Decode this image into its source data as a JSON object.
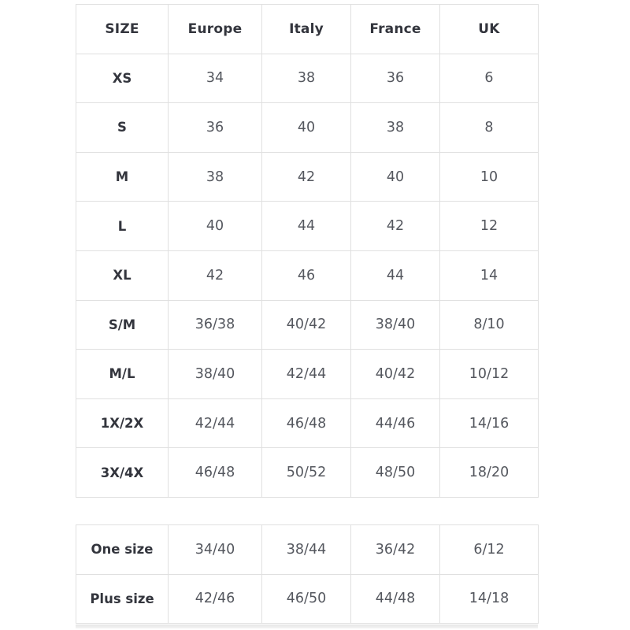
{
  "main_table": {
    "headers": [
      "SIZE",
      "Europe",
      "Italy",
      "France",
      "UK"
    ],
    "rows": [
      {
        "label": "XS",
        "europe": "34",
        "italy": "38",
        "france": "36",
        "uk": "6"
      },
      {
        "label": "S",
        "europe": "36",
        "italy": "40",
        "france": "38",
        "uk": "8"
      },
      {
        "label": "M",
        "europe": "38",
        "italy": "42",
        "france": "40",
        "uk": "10"
      },
      {
        "label": "L",
        "europe": "40",
        "italy": "44",
        "france": "42",
        "uk": "12"
      },
      {
        "label": "XL",
        "europe": "42",
        "italy": "46",
        "france": "44",
        "uk": "14"
      },
      {
        "label": "S/M",
        "europe": "36/38",
        "italy": "40/42",
        "france": "38/40",
        "uk": "8/10"
      },
      {
        "label": "M/L",
        "europe": "38/40",
        "italy": "42/44",
        "france": "40/42",
        "uk": "10/12"
      },
      {
        "label": "1X/2X",
        "europe": "42/44",
        "italy": "46/48",
        "france": "44/46",
        "uk": "14/16"
      },
      {
        "label": "3X/4X",
        "europe": "46/48",
        "italy": "50/52",
        "france": "48/50",
        "uk": "18/20"
      }
    ]
  },
  "extra_table": {
    "rows": [
      {
        "label": "One size",
        "europe": "34/40",
        "italy": "38/44",
        "france": "36/42",
        "uk": "6/12"
      },
      {
        "label": "Plus size",
        "europe": "42/46",
        "italy": "46/50",
        "france": "44/48",
        "uk": "14/18"
      }
    ]
  },
  "colors": {
    "border": "#e0e0e0",
    "header_text": "#33353d",
    "value_text": "#54575e",
    "background": "#ffffff"
  }
}
